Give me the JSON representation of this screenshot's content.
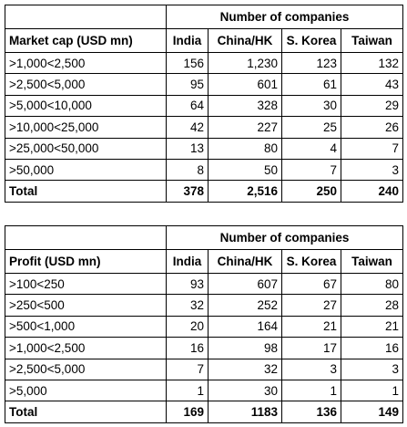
{
  "tables": [
    {
      "group_header": "Number of companies",
      "columns": [
        "Market cap (USD mn)",
        "India",
        "China/HK",
        "S. Korea",
        "Taiwan"
      ],
      "rows": [
        [
          ">1,000<2,500",
          "156",
          "1,230",
          "123",
          "132"
        ],
        [
          ">2,500<5,000",
          "95",
          "601",
          "61",
          "43"
        ],
        [
          ">5,000<10,000",
          "64",
          "328",
          "30",
          "29"
        ],
        [
          ">10,000<25,000",
          "42",
          "227",
          "25",
          "26"
        ],
        [
          ">25,000<50,000",
          "13",
          "80",
          "4",
          "7"
        ],
        [
          ">50,000",
          "8",
          "50",
          "7",
          "3"
        ],
        [
          "Total",
          "378",
          "2,516",
          "250",
          "240"
        ]
      ]
    },
    {
      "group_header": "Number of companies",
      "columns": [
        "Profit (USD mn)",
        "India",
        "China/HK",
        "S. Korea",
        "Taiwan"
      ],
      "rows": [
        [
          ">100<250",
          "93",
          "607",
          "67",
          "80"
        ],
        [
          ">250<500",
          "32",
          "252",
          "27",
          "28"
        ],
        [
          ">500<1,000",
          "20",
          "164",
          "21",
          "21"
        ],
        [
          ">1,000<2,500",
          "16",
          "98",
          "17",
          "16"
        ],
        [
          ">2,500<5,000",
          "7",
          "32",
          "3",
          "3"
        ],
        [
          ">5,000",
          "1",
          "30",
          "1",
          "1"
        ],
        [
          "Total",
          "169",
          "1183",
          "136",
          "149"
        ]
      ]
    }
  ]
}
